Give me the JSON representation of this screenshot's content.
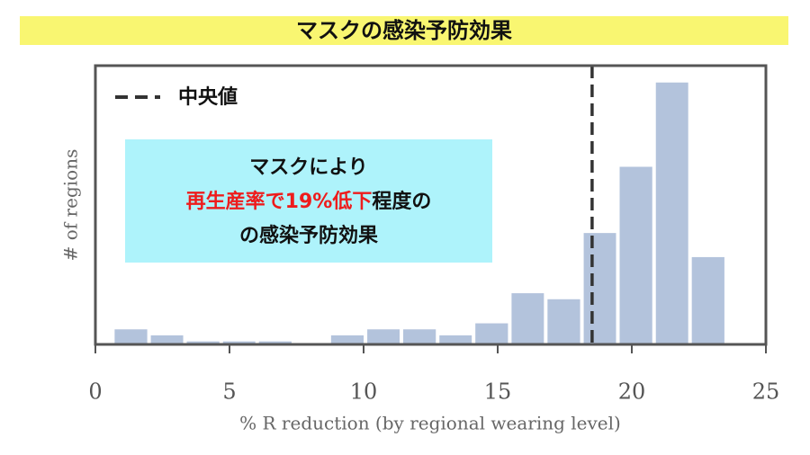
{
  "chart_data": {
    "type": "histogram",
    "title": "マスクの感染予防効果",
    "xlabel": "% R reduction (by regional wearing level)",
    "ylabel": "# of regions",
    "bins": [
      0.65,
      2.0,
      3.34,
      4.69,
      6.03,
      7.38,
      8.72,
      10.07,
      11.41,
      12.76,
      14.1,
      15.45,
      16.79,
      18.14,
      19.48,
      20.83,
      22.17,
      23.52
    ],
    "values": [
      3,
      2,
      1,
      1,
      1,
      0,
      2,
      3,
      3,
      2,
      4,
      9,
      8,
      19,
      30,
      44,
      15
    ],
    "color": "#b3c3dc",
    "xlim": [
      0,
      25
    ],
    "xticks": [
      0,
      5,
      10,
      15,
      20,
      25
    ],
    "ylim": [
      0.5,
      46.8
    ],
    "median": {
      "name": "中央値",
      "value": 18.52,
      "color": "#333333"
    },
    "annotation": {
      "line1": "マスクにより",
      "highlight": "再生産率で19%低下",
      "highlight_color": "#ee1c1c",
      "line2_rest": "程度の",
      "line3": "の感染予防効果"
    }
  }
}
